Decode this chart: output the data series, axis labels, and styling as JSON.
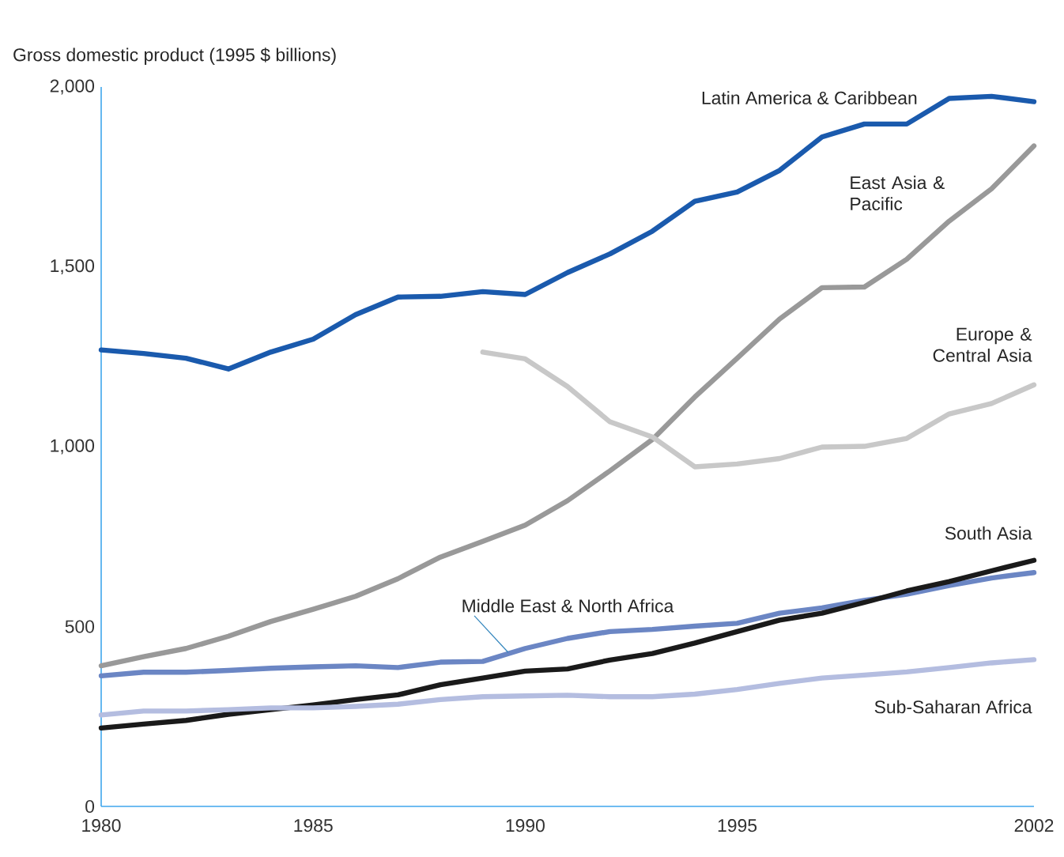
{
  "chart_data": {
    "type": "line",
    "ylabel": "Gross domestic product (1995 $ billions)",
    "x": [
      1980,
      1981,
      1982,
      1983,
      1984,
      1985,
      1986,
      1987,
      1988,
      1989,
      1990,
      1991,
      1992,
      1993,
      1994,
      1995,
      1996,
      1997,
      1998,
      1999,
      2000,
      2001,
      2002
    ],
    "xlim": [
      1980,
      2002
    ],
    "xticks": [
      1980,
      1985,
      1990,
      1995,
      2002
    ],
    "ylim": [
      0,
      2000
    ],
    "yticks": [
      0,
      500,
      {
        "value": 1000,
        "label": "1,000"
      },
      {
        "value": 1500,
        "label": "1,500"
      },
      {
        "value": 2000,
        "label": "2,000"
      }
    ],
    "marker": "none",
    "line_style": "solid",
    "series": [
      {
        "name": "Latin America & Caribbean",
        "color": "#1a5aad",
        "values": [
          1269,
          1259,
          1246,
          1216,
          1263,
          1299,
          1367,
          1416,
          1418,
          1431,
          1423,
          1484,
          1536,
          1599,
          1682,
          1708,
          1768,
          1861,
          1897,
          1897,
          1968,
          1974,
          1959
        ]
      },
      {
        "name": "East Asia & Pacific",
        "color": "#999999",
        "values": [
          391,
          416,
          439,
          473,
          514,
          548,
          584,
          633,
          693,
          737,
          782,
          850,
          933,
          1020,
          1138,
          1246,
          1355,
          1442,
          1444,
          1521,
          1627,
          1717,
          1836
        ]
      },
      {
        "name": "Europe & Central Asia",
        "color": "#c8c8c8",
        "values": [
          null,
          null,
          null,
          null,
          null,
          null,
          null,
          null,
          null,
          1263,
          1244,
          1167,
          1069,
          1027,
          944,
          952,
          967,
          999,
          1001,
          1023,
          1091,
          1120,
          1172
        ]
      },
      {
        "name": "Middle East & North Africa",
        "color": "#6b86c4",
        "values": [
          363,
          373,
          373,
          378,
          384,
          388,
          391,
          386,
          401,
          403,
          439,
          467,
          486,
          492,
          501,
          509,
          537,
          552,
          573,
          590,
          614,
          635,
          650
        ]
      },
      {
        "name": "South Asia",
        "color": "#1a1a1a",
        "values": [
          218,
          229,
          239,
          256,
          269,
          282,
          297,
          310,
          338,
          357,
          376,
          382,
          407,
          425,
          454,
          486,
          518,
          537,
          567,
          599,
          625,
          655,
          684
        ]
      },
      {
        "name": "Sub-Saharan Africa",
        "color": "#b4bde0",
        "values": [
          254,
          265,
          265,
          269,
          274,
          274,
          278,
          284,
          297,
          305,
          307,
          309,
          305,
          305,
          312,
          325,
          342,
          357,
          365,
          374,
          386,
          399,
          408
        ]
      }
    ]
  }
}
